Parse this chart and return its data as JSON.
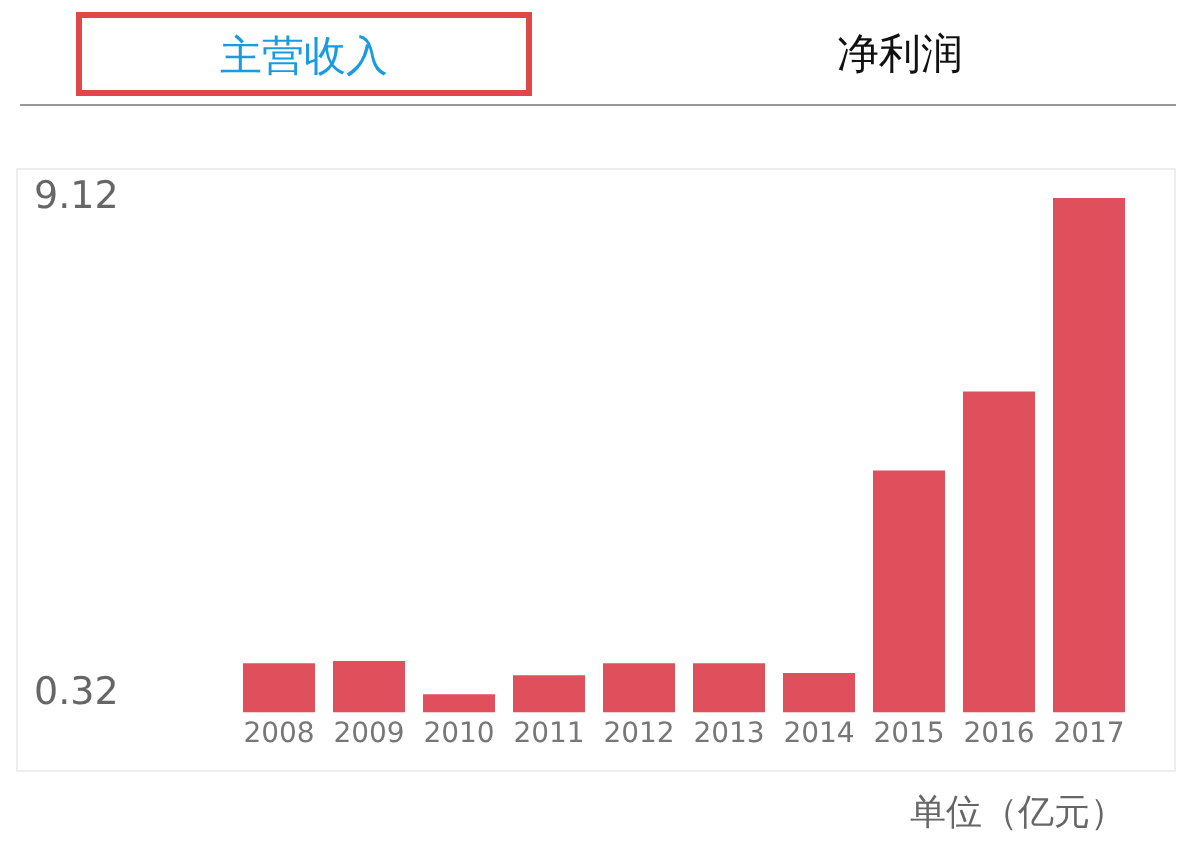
{
  "chart_data": {
    "type": "bar",
    "title": "主营收入",
    "subtitle": "净利润",
    "categories": [
      "2008",
      "2009",
      "2010",
      "2011",
      "2012",
      "2013",
      "2014",
      "2015",
      "2016",
      "2017"
    ],
    "values": [
      0.87,
      0.91,
      0.32,
      0.66,
      0.87,
      0.87,
      0.7,
      4.29,
      5.69,
      9.12
    ],
    "color": "#e0505c",
    "ylim": [
      0,
      9.12
    ],
    "yticks": [
      0.32,
      9.12
    ],
    "grid": false,
    "legend": false,
    "annotations": [
      "单位（亿元）"
    ]
  }
}
